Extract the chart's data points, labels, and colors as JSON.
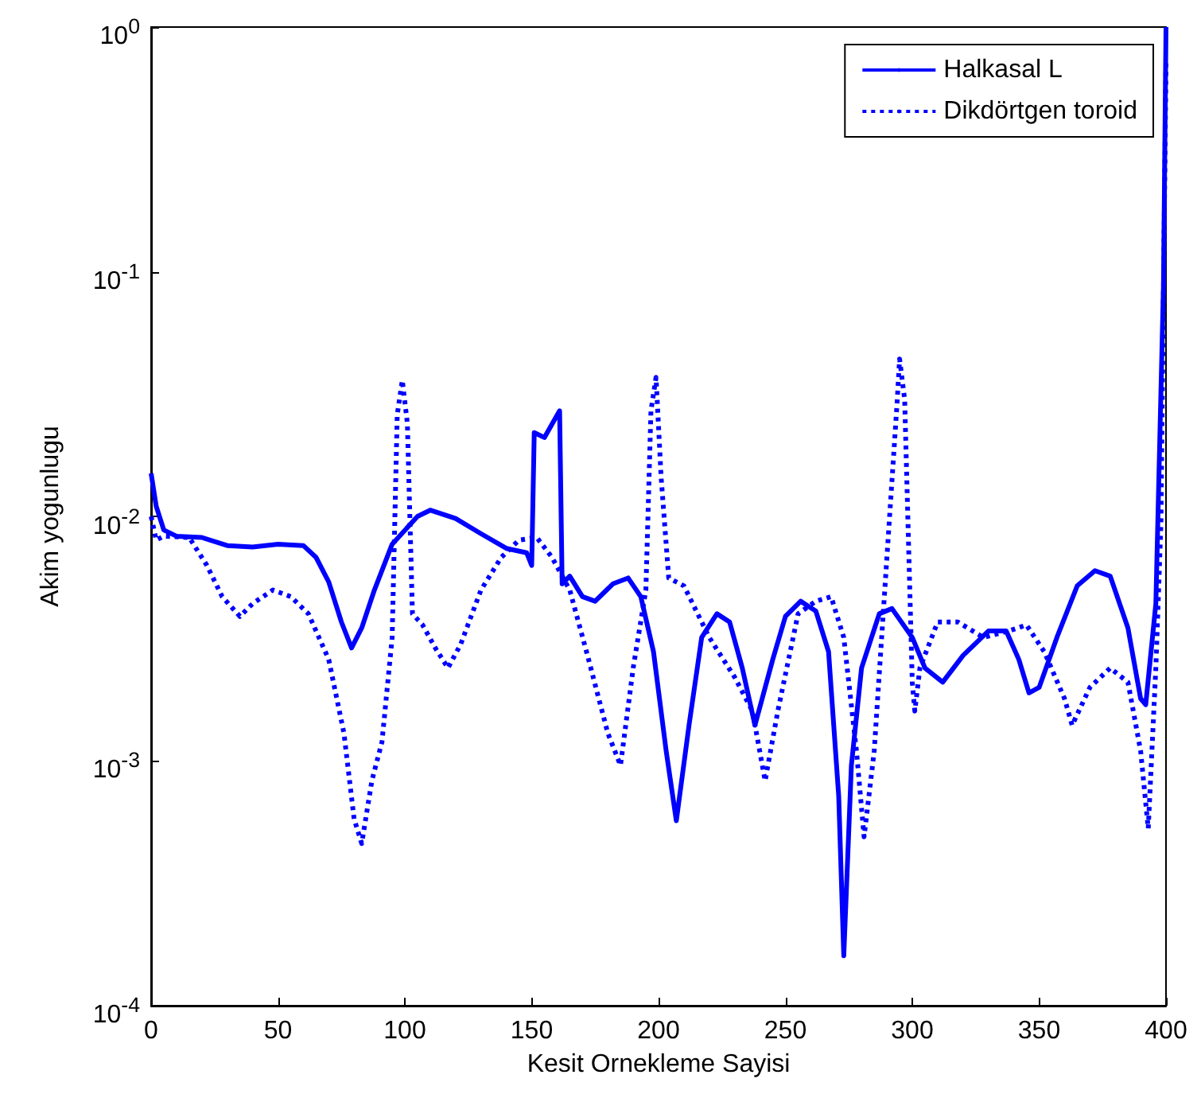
{
  "chart_data": {
    "type": "line",
    "xlabel": "Kesit Ornekleme Sayisi",
    "ylabel": "Akim yogunlugu",
    "log": "y",
    "grid": false,
    "legend": "top right",
    "marker": "none",
    "xlim": [
      0,
      400
    ],
    "xticks": [
      0,
      50,
      100,
      150,
      200,
      250,
      300,
      350,
      400
    ],
    "ylim": [
      0.0001,
      1
    ],
    "yticks": [
      {
        "value": 0.0001,
        "label": "10$^{-4}$"
      },
      {
        "value": 0.001,
        "label": "10$^{-3}$"
      },
      {
        "value": 0.01,
        "label": "10$^{-2}$"
      },
      {
        "value": 0.1,
        "label": "10$^{-1}$"
      },
      {
        "value": 1,
        "label": "10$^{0}$"
      }
    ],
    "series": [
      {
        "name": "Halkasal L",
        "color": "#0000ff",
        "line_style": "solid",
        "x": [
          0,
          2,
          5,
          10,
          20,
          30,
          40,
          50,
          60,
          65,
          70,
          75,
          79,
          83,
          88,
          95,
          105,
          110,
          120,
          130,
          140,
          148,
          150,
          151,
          155,
          161,
          162,
          165,
          170,
          175,
          182,
          188,
          193,
          198,
          203,
          207,
          212,
          217,
          223,
          228,
          233,
          238,
          245,
          250,
          256,
          262,
          267,
          271,
          273,
          276,
          280,
          287,
          292,
          300,
          305,
          312,
          320,
          330,
          337,
          342,
          346,
          350,
          357,
          365,
          372,
          378,
          385,
          390,
          392,
          396,
          399,
          400
        ],
        "values": [
          0.015,
          0.011,
          0.0088,
          0.0083,
          0.0082,
          0.0076,
          0.0075,
          0.0077,
          0.0076,
          0.0068,
          0.0054,
          0.0037,
          0.0029,
          0.0035,
          0.005,
          0.0077,
          0.01,
          0.0106,
          0.0098,
          0.0085,
          0.0074,
          0.0071,
          0.0063,
          0.022,
          0.021,
          0.027,
          0.0053,
          0.0057,
          0.0047,
          0.0045,
          0.0053,
          0.0056,
          0.0047,
          0.0028,
          0.0011,
          0.00057,
          0.0014,
          0.0032,
          0.004,
          0.0037,
          0.0024,
          0.0014,
          0.0026,
          0.0039,
          0.0045,
          0.0041,
          0.0028,
          0.00072,
          0.00016,
          0.00096,
          0.0024,
          0.004,
          0.0042,
          0.0032,
          0.0024,
          0.0021,
          0.0027,
          0.0034,
          0.0034,
          0.0026,
          0.0019,
          0.002,
          0.0032,
          0.0052,
          0.006,
          0.0057,
          0.0035,
          0.0018,
          0.0017,
          0.0044,
          0.087,
          1
        ]
      },
      {
        "name": "Dikdörtgen toroid",
        "color": "#0000ff",
        "line_style": "dotted",
        "x": [
          0,
          2,
          5,
          15,
          22,
          28,
          35,
          40,
          48,
          55,
          62,
          70,
          76,
          80,
          83,
          87,
          91,
          95,
          97,
          99,
          101,
          103,
          107,
          112,
          117,
          122,
          130,
          138,
          145,
          152,
          158,
          165,
          172,
          180,
          185,
          190,
          195,
          197,
          199,
          201,
          204,
          210,
          220,
          230,
          237,
          242,
          247,
          255,
          262,
          268,
          273,
          278,
          281,
          285,
          290,
          294,
          295,
          297,
          300,
          301,
          303,
          310,
          318,
          328,
          338,
          345,
          352,
          360,
          363,
          370,
          378,
          385,
          390,
          393,
          396,
          398,
          400
        ],
        "values": [
          0.01,
          0.008,
          0.0083,
          0.0082,
          0.0063,
          0.0047,
          0.0039,
          0.0044,
          0.005,
          0.0047,
          0.004,
          0.0026,
          0.0013,
          0.00058,
          0.00046,
          0.00083,
          0.0012,
          0.0032,
          0.026,
          0.036,
          0.024,
          0.004,
          0.0036,
          0.0029,
          0.0024,
          0.003,
          0.005,
          0.0068,
          0.008,
          0.0082,
          0.0068,
          0.005,
          0.0027,
          0.0013,
          0.00096,
          0.0024,
          0.005,
          0.027,
          0.037,
          0.0145,
          0.0056,
          0.0052,
          0.0032,
          0.0022,
          0.0016,
          0.00083,
          0.0016,
          0.004,
          0.0045,
          0.0047,
          0.0032,
          0.0011,
          0.00049,
          0.0011,
          0.0068,
          0.029,
          0.044,
          0.03,
          0.0021,
          0.0016,
          0.0024,
          0.0037,
          0.0037,
          0.0032,
          0.0034,
          0.0036,
          0.0028,
          0.0018,
          0.0014,
          0.002,
          0.0024,
          0.0021,
          0.0011,
          0.00053,
          0.0024,
          0.0093,
          0.71
        ]
      }
    ]
  }
}
